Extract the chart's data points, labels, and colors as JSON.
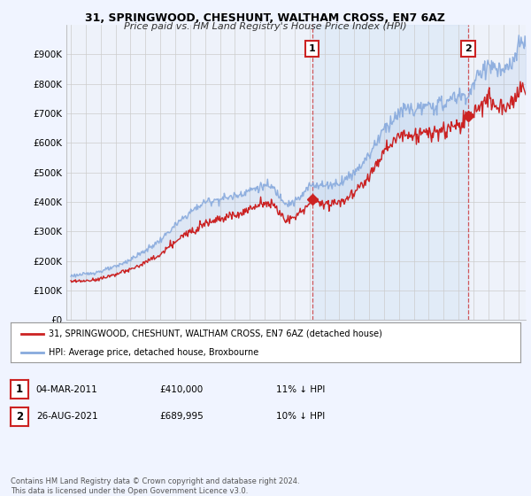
{
  "title1": "31, SPRINGWOOD, CHESHUNT, WALTHAM CROSS, EN7 6AZ",
  "title2": "Price paid vs. HM Land Registry's House Price Index (HPI)",
  "legend_label1": "31, SPRINGWOOD, CHESHUNT, WALTHAM CROSS, EN7 6AZ (detached house)",
  "legend_label2": "HPI: Average price, detached house, Broxbourne",
  "annotation1": {
    "num": "1",
    "date": "04-MAR-2011",
    "price": "£410,000",
    "pct": "11% ↓ HPI"
  },
  "annotation2": {
    "num": "2",
    "date": "26-AUG-2021",
    "price": "£689,995",
    "pct": "10% ↓ HPI"
  },
  "footnote": "Contains HM Land Registry data © Crown copyright and database right 2024.\nThis data is licensed under the Open Government Licence v3.0.",
  "hpi_color": "#88aadd",
  "price_color": "#cc2222",
  "fill_color": "#d0e4f7",
  "background_color": "#f0f4ff",
  "plot_bg_color": "#eef2fa",
  "ylim": [
    0,
    1000000
  ],
  "yticks": [
    0,
    100000,
    200000,
    300000,
    400000,
    500000,
    600000,
    700000,
    800000,
    900000
  ],
  "ytick_labels": [
    "£0",
    "£100K",
    "£200K",
    "£300K",
    "£400K",
    "£500K",
    "£600K",
    "£700K",
    "£800K",
    "£900K"
  ],
  "sale1_x": 2011.17,
  "sale1_y": 410000,
  "sale2_x": 2021.65,
  "sale2_y": 689995,
  "xmin": 1995.0,
  "xmax": 2025.5
}
